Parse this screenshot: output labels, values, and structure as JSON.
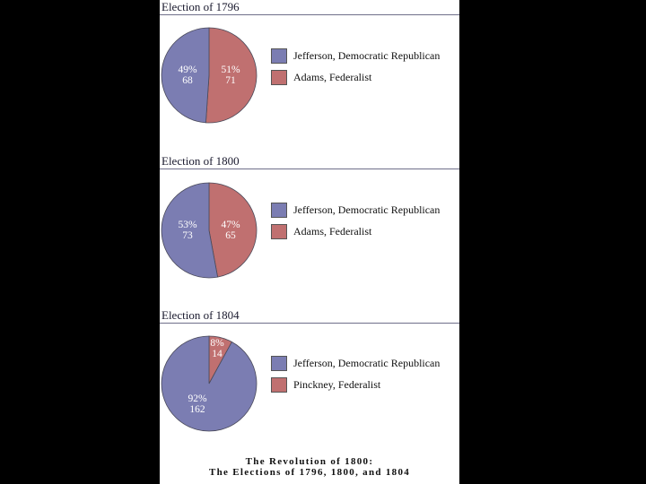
{
  "colors": {
    "democratic_republican": "#7b7db2",
    "federalist": "#c07070",
    "background": "#000000",
    "panel": "#ffffff"
  },
  "chart_data": [
    {
      "type": "pie",
      "title": "Election of 1796",
      "slices": [
        {
          "label": "Jefferson, Democratic Republican",
          "percent_label": "49%",
          "votes": 68,
          "color": "#7b7db2"
        },
        {
          "label": "Adams, Federalist",
          "percent_label": "51%",
          "votes": 71,
          "color": "#c07070"
        }
      ]
    },
    {
      "type": "pie",
      "title": "Election of 1800",
      "slices": [
        {
          "label": "Jefferson, Democratic Republican",
          "percent_label": "53%",
          "votes": 73,
          "color": "#7b7db2"
        },
        {
          "label": "Adams, Federalist",
          "percent_label": "47%",
          "votes": 65,
          "color": "#c07070"
        }
      ]
    },
    {
      "type": "pie",
      "title": "Election of 1804",
      "slices": [
        {
          "label": "Jefferson, Democratic Republican",
          "percent_label": "92%",
          "votes": 162,
          "color": "#7b7db2"
        },
        {
          "label": "Pinckney, Federalist",
          "percent_label": "8%",
          "votes": 14,
          "color": "#c07070"
        }
      ]
    }
  ],
  "caption": {
    "line1": "The Revolution of 1800:",
    "line2": "The Elections of 1796, 1800, and 1804"
  }
}
